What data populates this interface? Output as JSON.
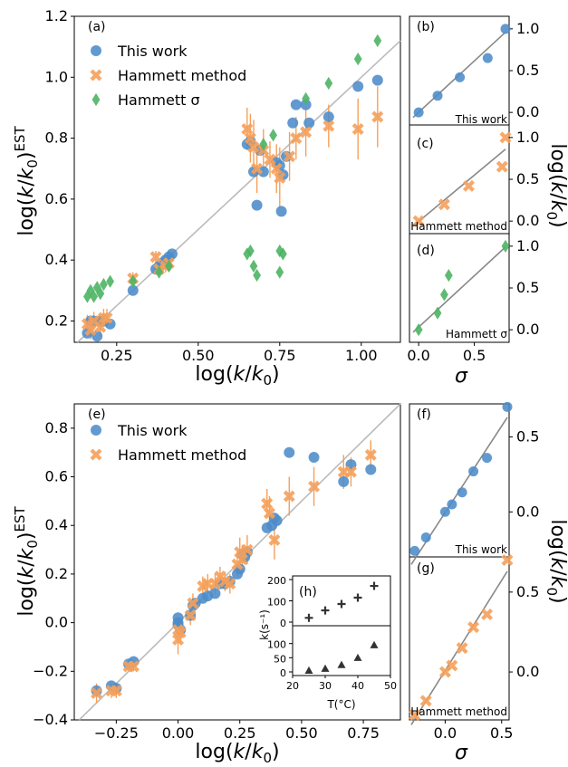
{
  "colors": {
    "blue": "#4c8cc9",
    "orange": "#f5a05a",
    "green": "#4cb464",
    "dark": "#333333",
    "diag": "#bbbbbb"
  },
  "labels": {
    "a": "(a)",
    "b": "(b)",
    "c": "(c)",
    "d": "(d)",
    "e": "(e)",
    "f": "(f)",
    "g": "(g)",
    "h": "(h)",
    "b_note": "This work",
    "c_note": "Hammett method",
    "d_note": "Hammett σ",
    "f_note": "This work",
    "g_note": "Hammett method",
    "h_ylabel": "k(s⁻¹)",
    "h_xlabel": "T(°C)",
    "legend_this_work": "This work",
    "legend_hammett_method": "Hammett method",
    "legend_hammett_sigma": "Hammett σ"
  },
  "chart_data": [
    {
      "panel": "a",
      "type": "scatter",
      "xlabel": "log(k/k0)",
      "ylabel": "log(k/k0)EST",
      "xlim": [
        0.12,
        1.12
      ],
      "ylim": [
        0.13,
        1.2
      ],
      "xticks": [
        0.25,
        0.5,
        0.75,
        1.0
      ],
      "xtick_labels": [
        "0.25",
        "0.50",
        "0.75",
        "1.00"
      ],
      "yticks": [
        0.2,
        0.4,
        0.6,
        0.8,
        1.0,
        1.2
      ],
      "ytick_labels": [
        "0.2",
        "0.4",
        "0.6",
        "0.8",
        "1.0",
        "1.2"
      ],
      "legend_position": "upper left",
      "series": [
        {
          "name": "This work",
          "marker": "circle",
          "color": "#4c8cc9",
          "points": [
            [
              0.16,
              0.16
            ],
            [
              0.17,
              0.2
            ],
            [
              0.18,
              0.2
            ],
            [
              0.19,
              0.15
            ],
            [
              0.2,
              0.2
            ],
            [
              0.21,
              0.2
            ],
            [
              0.23,
              0.19
            ],
            [
              0.3,
              0.3
            ],
            [
              0.37,
              0.37
            ],
            [
              0.38,
              0.38
            ],
            [
              0.39,
              0.39
            ],
            [
              0.4,
              0.4
            ],
            [
              0.41,
              0.41
            ],
            [
              0.42,
              0.42
            ],
            [
              0.65,
              0.78
            ],
            [
              0.66,
              0.79
            ],
            [
              0.67,
              0.69
            ],
            [
              0.68,
              0.58
            ],
            [
              0.69,
              0.76
            ],
            [
              0.7,
              0.69
            ],
            [
              0.74,
              0.72
            ],
            [
              0.75,
              0.71
            ],
            [
              0.755,
              0.56
            ],
            [
              0.76,
              0.68
            ],
            [
              0.77,
              0.74
            ],
            [
              0.79,
              0.85
            ],
            [
              0.8,
              0.91
            ],
            [
              0.83,
              0.91
            ],
            [
              0.84,
              0.85
            ],
            [
              0.9,
              0.87
            ],
            [
              0.99,
              0.97
            ],
            [
              1.05,
              0.99
            ]
          ]
        },
        {
          "name": "Hammett method",
          "marker": "x",
          "color": "#f5a05a",
          "points": [
            [
              0.16,
              0.19,
              0.03
            ],
            [
              0.17,
              0.17,
              0.03
            ],
            [
              0.18,
              0.2,
              0.03
            ],
            [
              0.2,
              0.18,
              0.03
            ],
            [
              0.21,
              0.21,
              0.03
            ],
            [
              0.22,
              0.21,
              0.03
            ],
            [
              0.3,
              0.34,
              0.02
            ],
            [
              0.37,
              0.41,
              0.02
            ],
            [
              0.38,
              0.37,
              0.02
            ],
            [
              0.4,
              0.38,
              0.02
            ],
            [
              0.41,
              0.39,
              0.02
            ],
            [
              0.65,
              0.83,
              0.07
            ],
            [
              0.66,
              0.8,
              0.08
            ],
            [
              0.67,
              0.77,
              0.09
            ],
            [
              0.68,
              0.7,
              0.08
            ],
            [
              0.7,
              0.76,
              0.07
            ],
            [
              0.72,
              0.73,
              0.06
            ],
            [
              0.74,
              0.7,
              0.08
            ],
            [
              0.75,
              0.67,
              0.1
            ],
            [
              0.78,
              0.74,
              0.08
            ],
            [
              0.8,
              0.8,
              0.07
            ],
            [
              0.83,
              0.82,
              0.08
            ],
            [
              0.9,
              0.84,
              0.07
            ],
            [
              0.99,
              0.83,
              0.1
            ],
            [
              1.05,
              0.87,
              0.1
            ]
          ]
        },
        {
          "name": "Hammett σ",
          "marker": "diamond",
          "color": "#4cb464",
          "points": [
            [
              0.16,
              0.28
            ],
            [
              0.17,
              0.3
            ],
            [
              0.18,
              0.28
            ],
            [
              0.19,
              0.31
            ],
            [
              0.2,
              0.29
            ],
            [
              0.21,
              0.32
            ],
            [
              0.23,
              0.33
            ],
            [
              0.3,
              0.33
            ],
            [
              0.38,
              0.36
            ],
            [
              0.41,
              0.38
            ],
            [
              0.65,
              0.42
            ],
            [
              0.66,
              0.43
            ],
            [
              0.67,
              0.38
            ],
            [
              0.68,
              0.35
            ],
            [
              0.7,
              0.78
            ],
            [
              0.73,
              0.81
            ],
            [
              0.75,
              0.43
            ],
            [
              0.75,
              0.36
            ],
            [
              0.76,
              0.42
            ],
            [
              0.83,
              0.93
            ],
            [
              0.9,
              0.98
            ],
            [
              0.99,
              1.06
            ],
            [
              1.05,
              1.12
            ]
          ]
        }
      ]
    },
    {
      "panel": "b",
      "type": "scatter",
      "note": "This work",
      "xlim": [
        -0.05,
        0.78
      ],
      "ylim": [
        -0.15,
        1.15
      ],
      "yticks": [
        0.0,
        0.5,
        1.0
      ],
      "ytick_labels": [
        "0.0",
        "0.5",
        "1.0"
      ],
      "series": [
        {
          "name": "This work",
          "marker": "circle",
          "color": "#4c8cc9",
          "x": [
            0.0,
            0.17,
            0.37,
            0.62,
            0.78
          ],
          "y": [
            0.0,
            0.2,
            0.42,
            0.65,
            1.0
          ]
        }
      ],
      "fit": [
        [
          -0.05,
          -0.06
        ],
        [
          0.78,
          0.96
        ]
      ]
    },
    {
      "panel": "c",
      "type": "scatter",
      "note": "Hammett method",
      "xlim": [
        -0.05,
        0.78
      ],
      "ylim": [
        -0.15,
        1.15
      ],
      "yticks": [
        0.0,
        0.5,
        1.0
      ],
      "ytick_labels": [
        "0.0",
        "0.5",
        "1.0"
      ],
      "series": [
        {
          "name": "Hammett method",
          "marker": "x",
          "color": "#f5a05a",
          "x": [
            0.0,
            0.23,
            0.45,
            0.75,
            0.78
          ],
          "y": [
            0.0,
            0.2,
            0.42,
            0.65,
            1.0
          ]
        }
      ],
      "fit": [
        [
          -0.05,
          -0.06
        ],
        [
          0.78,
          0.86
        ]
      ]
    },
    {
      "panel": "d",
      "type": "scatter",
      "note": "Hammett σ",
      "xlim": [
        -0.05,
        0.78
      ],
      "ylim": [
        -0.15,
        1.15
      ],
      "yticks": [
        0.0,
        0.5,
        1.0
      ],
      "ytick_labels": [
        "0.0",
        "0.5",
        "1.0"
      ],
      "xticks": [
        0.0,
        0.5
      ],
      "xtick_labels": [
        "0.0",
        "0.5"
      ],
      "xlabel": "σ",
      "series": [
        {
          "name": "Hammett σ",
          "marker": "diamond",
          "color": "#4cb464",
          "x": [
            0.0,
            0.17,
            0.23,
            0.27,
            0.78
          ],
          "y": [
            0.0,
            0.2,
            0.42,
            0.65,
            1.0
          ]
        }
      ],
      "fit": [
        [
          -0.05,
          -0.03
        ],
        [
          0.78,
          0.99
        ]
      ]
    },
    {
      "panel": "e",
      "type": "scatter",
      "xlabel": "log(k/k0)",
      "ylabel": "log(k/k0)EST",
      "xlim": [
        -0.42,
        0.9
      ],
      "ylim": [
        -0.4,
        0.9
      ],
      "xticks": [
        -0.25,
        0.0,
        0.25,
        0.5,
        0.75
      ],
      "xtick_labels": [
        "−0.25",
        "0.00",
        "0.25",
        "0.50",
        "0.75"
      ],
      "yticks": [
        -0.4,
        -0.2,
        0.0,
        0.2,
        0.4,
        0.6,
        0.8
      ],
      "ytick_labels": [
        "−0.4",
        "−0.2",
        "0.0",
        "0.2",
        "0.4",
        "0.6",
        "0.8"
      ],
      "legend_position": "upper left",
      "series": [
        {
          "name": "This work",
          "marker": "circle",
          "color": "#4c8cc9",
          "points": [
            [
              -0.33,
              -0.28
            ],
            [
              -0.27,
              -0.26
            ],
            [
              -0.25,
              -0.27
            ],
            [
              -0.2,
              -0.17
            ],
            [
              -0.18,
              -0.16
            ],
            [
              0.0,
              0.02
            ],
            [
              0.0,
              -0.01
            ],
            [
              0.0,
              0.0
            ],
            [
              0.01,
              -0.03
            ],
            [
              0.05,
              0.03
            ],
            [
              0.06,
              0.07
            ],
            [
              0.07,
              0.08
            ],
            [
              0.1,
              0.1
            ],
            [
              0.12,
              0.11
            ],
            [
              0.15,
              0.12
            ],
            [
              0.17,
              0.16
            ],
            [
              0.19,
              0.16
            ],
            [
              0.21,
              0.17
            ],
            [
              0.24,
              0.2
            ],
            [
              0.25,
              0.22
            ],
            [
              0.26,
              0.28
            ],
            [
              0.27,
              0.27
            ],
            [
              0.28,
              0.29
            ],
            [
              0.36,
              0.39
            ],
            [
              0.38,
              0.4
            ],
            [
              0.39,
              0.43
            ],
            [
              0.4,
              0.42
            ],
            [
              0.45,
              0.7
            ],
            [
              0.55,
              0.68
            ],
            [
              0.67,
              0.58
            ],
            [
              0.7,
              0.65
            ],
            [
              0.78,
              0.63
            ]
          ]
        },
        {
          "name": "Hammett method",
          "marker": "x",
          "color": "#f5a05a",
          "points": [
            [
              -0.33,
              -0.29,
              0.04
            ],
            [
              -0.27,
              -0.28,
              0.03
            ],
            [
              -0.25,
              -0.28,
              0.03
            ],
            [
              -0.2,
              -0.18,
              0.02
            ],
            [
              -0.18,
              -0.18,
              0.02
            ],
            [
              0.0,
              -0.07,
              0.06
            ],
            [
              0.0,
              -0.03,
              0.05
            ],
            [
              0.01,
              -0.04,
              0.05
            ],
            [
              0.05,
              0.03,
              0.04
            ],
            [
              0.06,
              0.08,
              0.04
            ],
            [
              0.1,
              0.15,
              0.04
            ],
            [
              0.12,
              0.16,
              0.04
            ],
            [
              0.15,
              0.16,
              0.04
            ],
            [
              0.17,
              0.19,
              0.04
            ],
            [
              0.19,
              0.17,
              0.04
            ],
            [
              0.21,
              0.16,
              0.04
            ],
            [
              0.24,
              0.24,
              0.05
            ],
            [
              0.25,
              0.29,
              0.06
            ],
            [
              0.26,
              0.26,
              0.06
            ],
            [
              0.28,
              0.3,
              0.06
            ],
            [
              0.36,
              0.49,
              0.06
            ],
            [
              0.37,
              0.45,
              0.07
            ],
            [
              0.39,
              0.34,
              0.08
            ],
            [
              0.45,
              0.52,
              0.08
            ],
            [
              0.55,
              0.56,
              0.08
            ],
            [
              0.67,
              0.62,
              0.07
            ],
            [
              0.7,
              0.62,
              0.06
            ],
            [
              0.78,
              0.69,
              0.06
            ]
          ]
        }
      ]
    },
    {
      "panel": "f",
      "type": "scatter",
      "note": "This work",
      "xlim": [
        -0.3,
        0.55
      ],
      "ylim": [
        -0.3,
        0.72
      ],
      "yticks": [
        0.0,
        0.5
      ],
      "ytick_labels": [
        "0.0",
        "0.5"
      ],
      "series": [
        {
          "name": "This work",
          "marker": "circle",
          "color": "#4c8cc9",
          "x": [
            -0.27,
            -0.17,
            0.0,
            0.06,
            0.15,
            0.25,
            0.37,
            0.55
          ],
          "y": [
            -0.26,
            -0.17,
            0.0,
            0.05,
            0.13,
            0.27,
            0.36,
            0.7
          ]
        }
      ],
      "fit": [
        [
          -0.3,
          -0.35
        ],
        [
          0.55,
          0.63
        ]
      ]
    },
    {
      "panel": "g",
      "type": "scatter",
      "note": "Hammett method",
      "xlim": [
        -0.3,
        0.55
      ],
      "ylim": [
        -0.3,
        0.72
      ],
      "xticks": [
        0.0,
        0.5
      ],
      "xtick_labels": [
        "0.0",
        "0.5"
      ],
      "yticks": [
        0.0,
        0.5
      ],
      "ytick_labels": [
        "0.0",
        "0.5"
      ],
      "xlabel": "σ",
      "series": [
        {
          "name": "Hammett method",
          "marker": "x",
          "color": "#f5a05a",
          "x": [
            -0.27,
            -0.17,
            0.0,
            0.06,
            0.15,
            0.25,
            0.37,
            0.55
          ],
          "y": [
            -0.27,
            -0.18,
            0.0,
            0.04,
            0.15,
            0.28,
            0.36,
            0.7
          ]
        }
      ],
      "fit": [
        [
          -0.3,
          -0.33
        ],
        [
          0.55,
          0.63
        ]
      ]
    },
    {
      "panel": "h",
      "type": "scatter",
      "xlabel": "T(°C)",
      "ylabel": "k(s⁻¹)",
      "xlim": [
        20,
        50
      ],
      "xticks": [
        20,
        30,
        40,
        50
      ],
      "xtick_labels": [
        "20",
        "30",
        "40",
        "50"
      ],
      "upper": {
        "ylim": [
          0,
          200
        ],
        "yticks": [
          0,
          100,
          200
        ],
        "ytick_labels": [
          "0",
          "100",
          "200"
        ],
        "marker": "plus",
        "x": [
          25,
          30,
          35,
          40,
          45
        ],
        "y": [
          20,
          55,
          85,
          115,
          170
        ]
      },
      "lower": {
        "ylim": [
          0,
          150
        ],
        "yticks": [
          0,
          50,
          100
        ],
        "ytick_labels": [
          "0",
          "50",
          "100"
        ],
        "marker": "triangle",
        "x": [
          25,
          30,
          35,
          40,
          45
        ],
        "y": [
          5,
          12,
          25,
          50,
          95
        ]
      }
    }
  ]
}
